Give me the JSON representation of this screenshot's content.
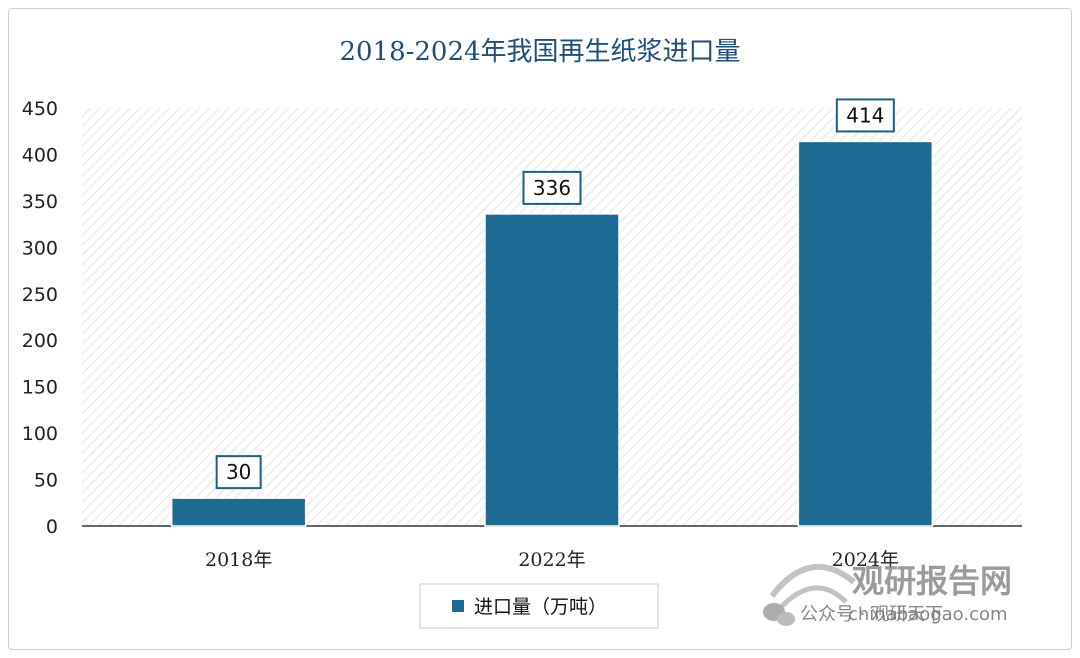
{
  "chart_data": {
    "type": "bar",
    "title": "2018-2024年我国再生纸浆进口量",
    "categories": [
      "2018年",
      "2022年",
      "2024年"
    ],
    "series": [
      {
        "name": "进口量（万吨）",
        "values": [
          30,
          336,
          414
        ]
      }
    ],
    "ylim": [
      0,
      450
    ],
    "yticks": [
      0,
      50,
      100,
      150,
      200,
      250,
      300,
      350,
      400,
      450
    ],
    "grid": false,
    "legend": "bottom",
    "data_labels": true
  },
  "colors": {
    "bar": "#1d6a93",
    "title": "#1f4e79",
    "label_border": "#1d5f85"
  },
  "watermark": {
    "brand": "观研报告网",
    "site": "chinabaogao.com",
    "account": "公众号 · 观研天下"
  }
}
